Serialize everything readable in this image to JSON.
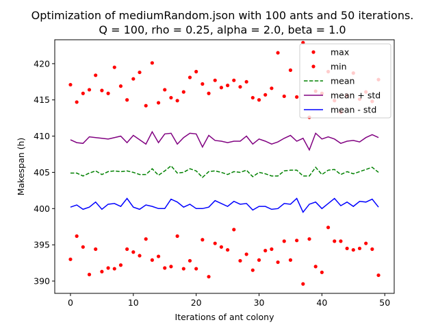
{
  "chart_data": {
    "type": "line",
    "title": "Optimization of mediumRandom.json with 100 ants and 50 iterations.",
    "subtitle": "Q = 100, rho = 0.25, alpha = 2.0, beta = 1.0",
    "xlabel": "Iterations of ant colony",
    "ylabel": "Makespan (h)",
    "xlim": [
      -2.5,
      51.5
    ],
    "ylim": [
      388.3,
      423.3
    ],
    "xticks": [
      0,
      10,
      20,
      30,
      40,
      50
    ],
    "yticks": [
      390,
      395,
      400,
      405,
      410,
      415,
      420
    ],
    "grid": false,
    "legend_position": "top-right",
    "x": [
      0,
      1,
      2,
      3,
      4,
      5,
      6,
      7,
      8,
      9,
      10,
      11,
      12,
      13,
      14,
      15,
      16,
      17,
      18,
      19,
      20,
      21,
      22,
      23,
      24,
      25,
      26,
      27,
      28,
      29,
      30,
      31,
      32,
      33,
      34,
      35,
      36,
      37,
      38,
      39,
      40,
      41,
      42,
      43,
      44,
      45,
      46,
      47,
      48,
      49
    ],
    "series": [
      {
        "name": "max",
        "style": "points",
        "color": "#ff0000",
        "values": [
          417.1,
          414.7,
          415.9,
          416.4,
          418.4,
          416.3,
          415.9,
          419.5,
          416.9,
          415.0,
          417.9,
          418.8,
          414.2,
          420.1,
          414.6,
          416.4,
          415.3,
          414.9,
          416.1,
          418.1,
          418.9,
          417.2,
          415.9,
          417.7,
          416.7,
          417.0,
          417.7,
          416.8,
          417.5,
          415.3,
          415.0,
          415.7,
          416.6,
          421.5,
          415.5,
          419.1,
          415.4,
          422.9,
          412.6,
          416.2,
          415.9,
          418.9,
          414.9,
          413.3,
          415.6,
          418.7,
          415.1,
          416.1,
          414.8,
          417.8
        ]
      },
      {
        "name": "min",
        "style": "points",
        "color": "#ff0000",
        "values": [
          393.0,
          396.2,
          394.7,
          390.9,
          394.4,
          391.3,
          391.8,
          391.7,
          392.2,
          394.4,
          394.0,
          393.5,
          395.8,
          392.9,
          393.4,
          391.8,
          392.0,
          396.2,
          391.7,
          392.8,
          391.7,
          395.7,
          390.6,
          395.2,
          394.7,
          394.3,
          397.1,
          392.8,
          393.7,
          391.5,
          392.9,
          394.2,
          394.4,
          392.6,
          395.5,
          392.9,
          395.6,
          389.6,
          395.8,
          392.0,
          391.2,
          397.4,
          395.5,
          395.5,
          394.5,
          394.3,
          394.5,
          395.2,
          394.4,
          390.8
        ]
      },
      {
        "name": "mean",
        "style": "dashed",
        "color": "#008000",
        "values": [
          404.9,
          404.9,
          404.5,
          404.9,
          405.2,
          404.7,
          405.1,
          405.2,
          405.1,
          405.2,
          405.0,
          404.7,
          404.7,
          405.5,
          404.6,
          405.2,
          405.9,
          404.9,
          405.0,
          405.5,
          405.2,
          404.3,
          405.1,
          405.2,
          405.0,
          404.7,
          405.1,
          405.0,
          405.3,
          404.4,
          405.0,
          404.8,
          404.5,
          404.5,
          405.2,
          405.3,
          405.3,
          404.5,
          404.5,
          405.7,
          404.7,
          405.3,
          405.4,
          404.7,
          405.1,
          404.8,
          405.1,
          405.4,
          405.7,
          405.0
        ]
      },
      {
        "name": "mean + std",
        "style": "solid",
        "color": "#800080",
        "values": [
          409.5,
          409.1,
          409.0,
          409.9,
          409.8,
          409.7,
          409.6,
          409.8,
          410.0,
          409.1,
          410.1,
          409.5,
          408.9,
          410.6,
          409.1,
          410.3,
          410.4,
          408.9,
          409.8,
          410.4,
          410.3,
          408.5,
          410.1,
          409.4,
          409.3,
          409.1,
          409.3,
          409.3,
          410.0,
          408.9,
          409.6,
          409.3,
          408.9,
          409.2,
          409.7,
          410.1,
          409.3,
          409.7,
          408.1,
          410.4,
          409.6,
          409.9,
          409.6,
          409.0,
          409.3,
          409.4,
          409.2,
          409.8,
          410.2,
          409.8
        ]
      },
      {
        "name": "mean - std",
        "style": "solid",
        "color": "#0000ff",
        "values": [
          400.2,
          400.5,
          399.9,
          400.2,
          400.9,
          399.9,
          400.6,
          400.7,
          400.3,
          401.4,
          400.2,
          399.9,
          400.5,
          400.3,
          400.0,
          400.0,
          401.3,
          400.9,
          400.2,
          400.6,
          400.0,
          400.0,
          400.2,
          401.1,
          400.7,
          400.3,
          401.0,
          400.6,
          400.7,
          399.8,
          400.3,
          400.3,
          399.9,
          400.0,
          400.7,
          400.6,
          401.4,
          399.5,
          400.6,
          400.9,
          400.0,
          400.7,
          401.4,
          400.4,
          400.9,
          400.3,
          401.0,
          400.9,
          401.3,
          400.2
        ]
      }
    ]
  }
}
